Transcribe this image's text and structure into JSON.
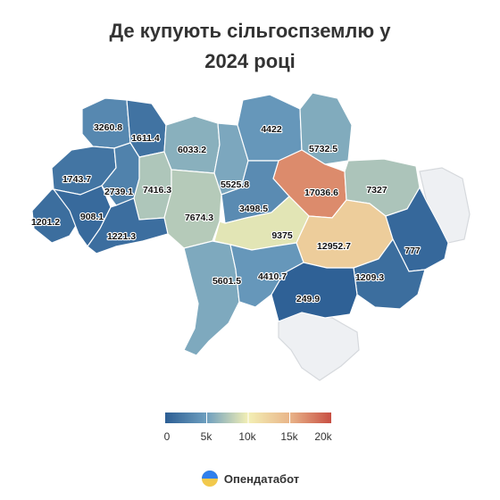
{
  "title_line1": "Де купують сільгоспземлю у",
  "title_line2": "2024 році",
  "legend": {
    "ticks": [
      "0",
      "5k",
      "10k",
      "15k",
      "20k"
    ],
    "min": 0,
    "max": 20000,
    "colors": [
      "#2c5e94",
      "#6e9fbf",
      "#f3efb4",
      "#e9b589",
      "#c84f43"
    ]
  },
  "brand": "Опендатабот",
  "regions": [
    {
      "id": "volyn",
      "value": "3260.8"
    },
    {
      "id": "rivne",
      "value": "1611.4"
    },
    {
      "id": "lviv",
      "value": "1743.7"
    },
    {
      "id": "ternopil",
      "value": "2739.1"
    },
    {
      "id": "khmelnytskyi",
      "value": "7416.3"
    },
    {
      "id": "zhytomyr",
      "value": "6033.2"
    },
    {
      "id": "kyiv",
      "value": "5525.8"
    },
    {
      "id": "chernihiv",
      "value": "4422"
    },
    {
      "id": "sumy",
      "value": "5732.5"
    },
    {
      "id": "poltava",
      "value": "17036.6"
    },
    {
      "id": "kharkiv",
      "value": "7327"
    },
    {
      "id": "vinnytsia",
      "value": "7674.3"
    },
    {
      "id": "cherkasy",
      "value": "3498.5"
    },
    {
      "id": "kirovohrad",
      "value": "9375"
    },
    {
      "id": "dnipro",
      "value": "12952.7"
    },
    {
      "id": "luhansk",
      "value": "777"
    },
    {
      "id": "donetsk",
      "value": "1209.3"
    },
    {
      "id": "zakarpattia",
      "value": "1201.2"
    },
    {
      "id": "ivano_frankivsk",
      "value": "908.1"
    },
    {
      "id": "chernivtsi",
      "value": "1221.3"
    },
    {
      "id": "odesa",
      "value": "5601.5"
    },
    {
      "id": "mykolaiv",
      "value": "4410.7"
    },
    {
      "id": "zaporizhzhia",
      "value": "249.9"
    }
  ]
}
